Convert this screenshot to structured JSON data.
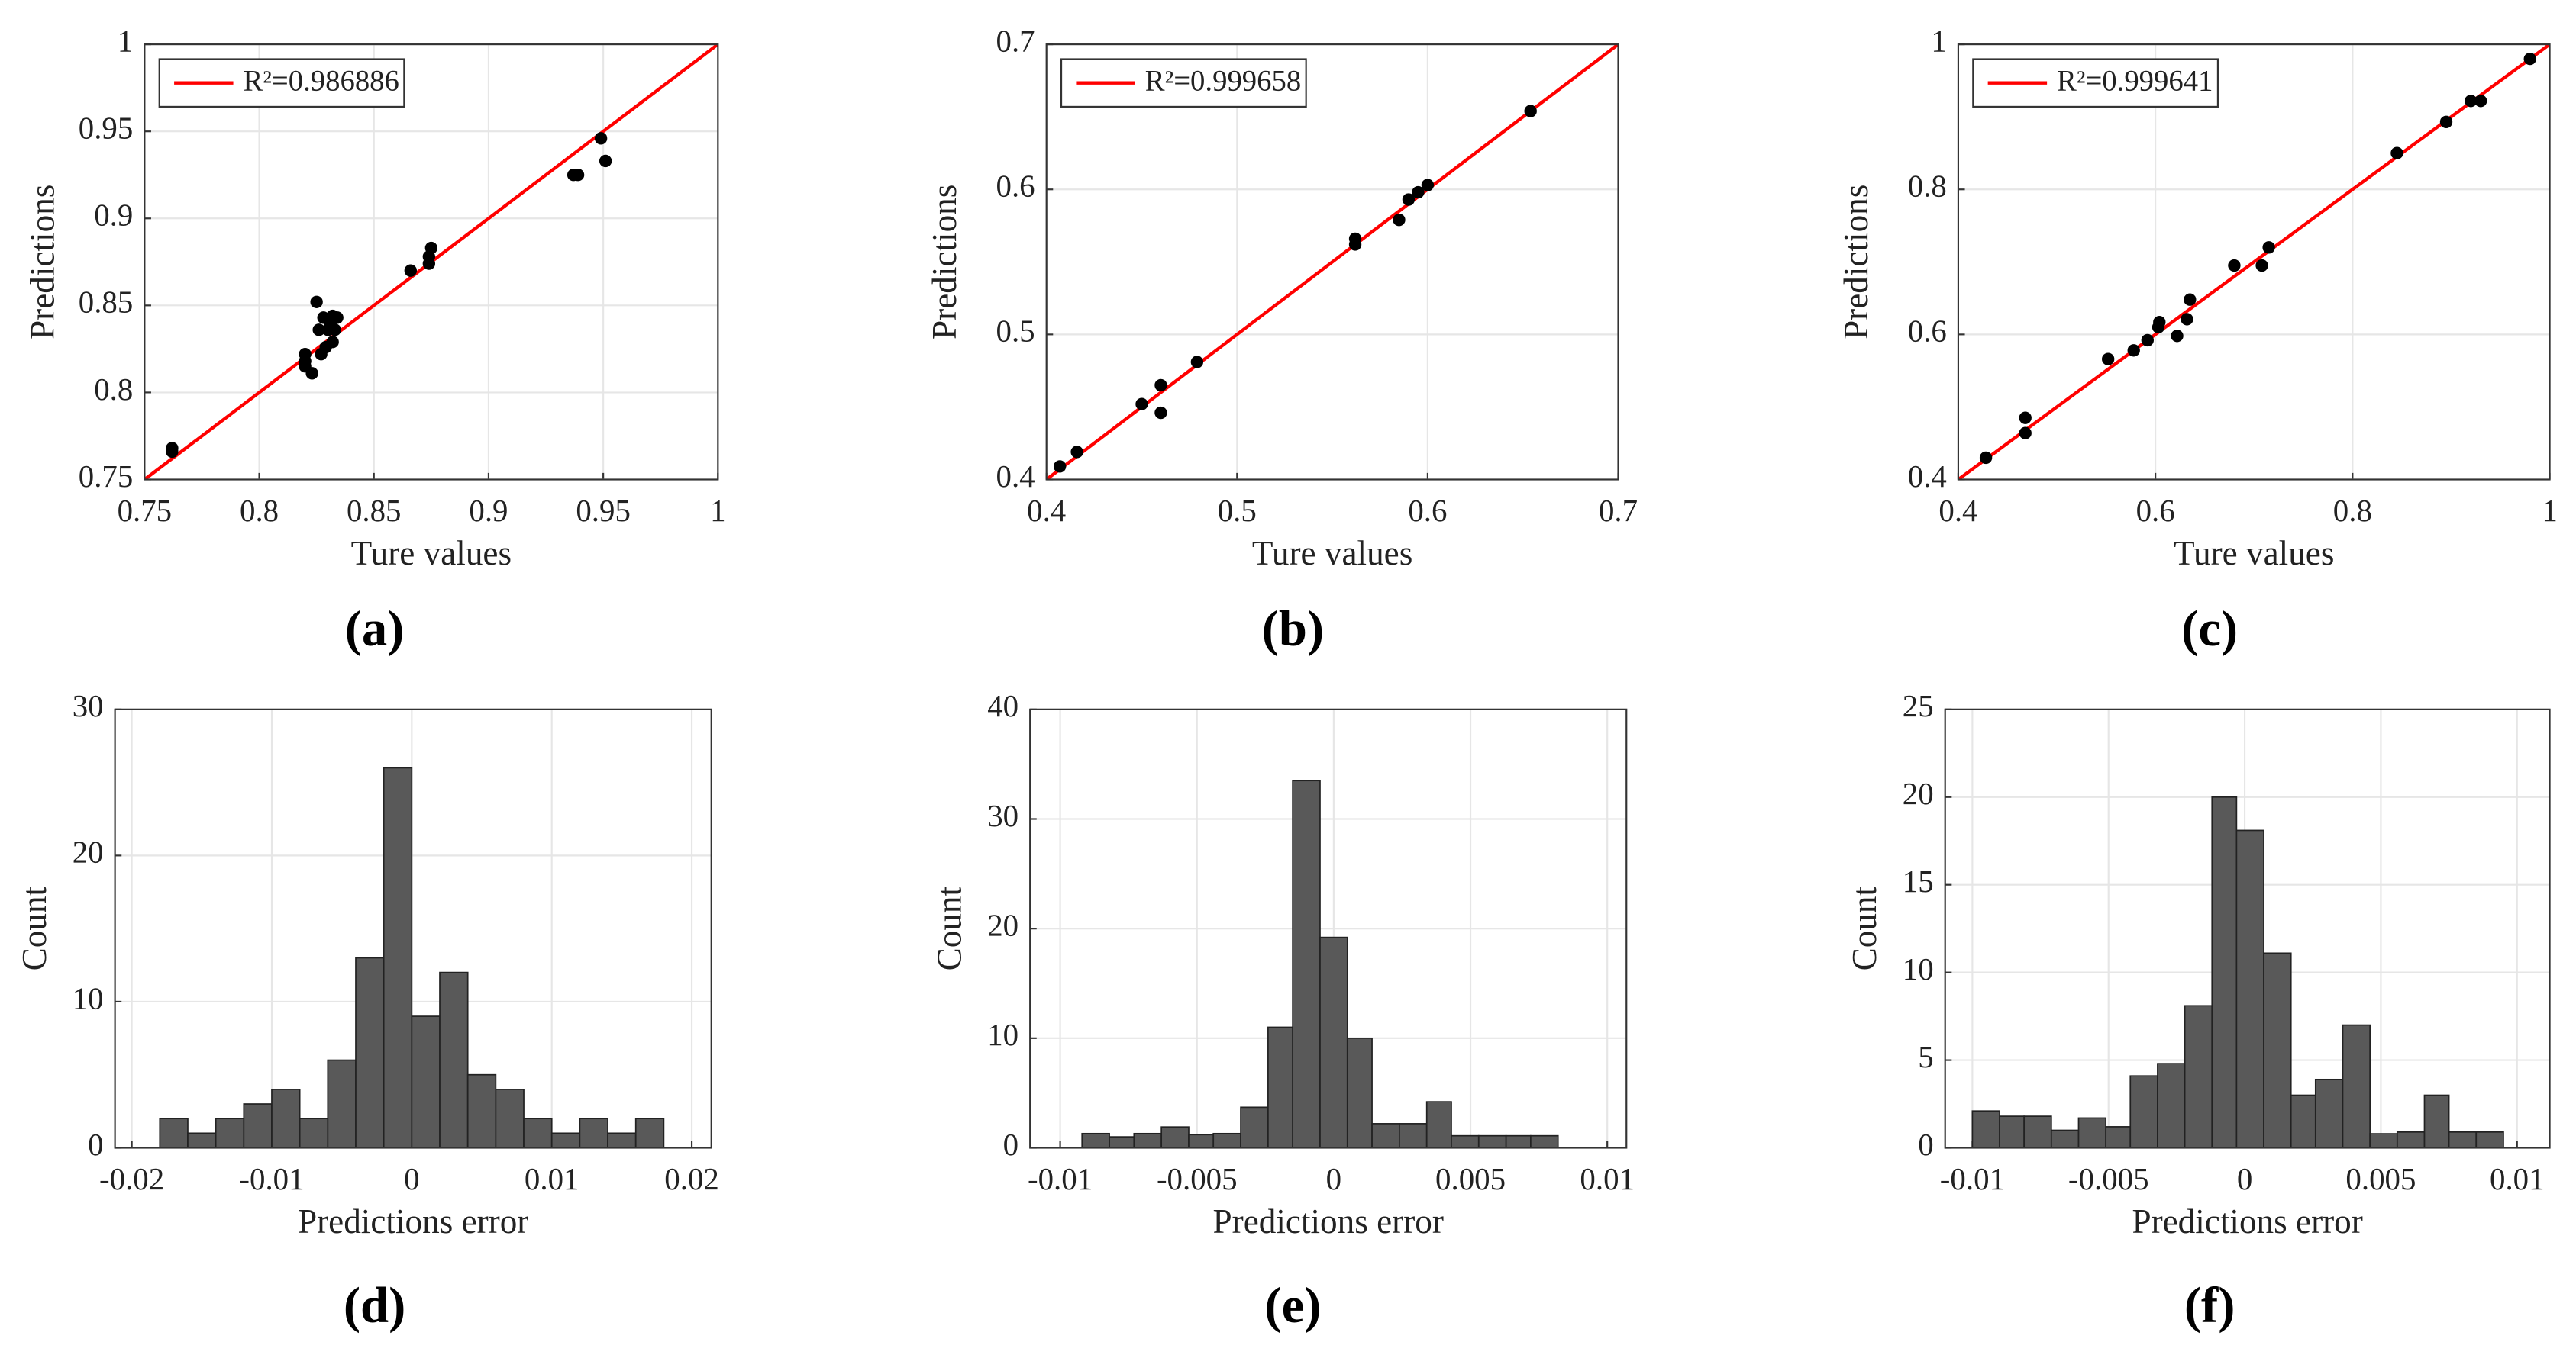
{
  "chart_data": [
    {
      "type": "scatter",
      "label": "(a)",
      "xlabel": "Ture values",
      "ylabel": "Predictions",
      "xlim": [
        0.75,
        1
      ],
      "ylim": [
        0.75,
        1
      ],
      "xticks": [
        0.75,
        0.8,
        0.85,
        0.9,
        0.95,
        1
      ],
      "yticks": [
        0.75,
        0.8,
        0.85,
        0.9,
        0.95,
        1
      ],
      "grid": true,
      "legend": "upper left",
      "fit_line": {
        "name": "R²=0.986886",
        "color": "#ff0000",
        "x": [
          0.75,
          1
        ],
        "y": [
          0.75,
          1
        ]
      },
      "points": {
        "color": "#000000",
        "x": [
          0.762,
          0.762,
          0.82,
          0.82,
          0.82,
          0.823,
          0.825,
          0.826,
          0.827,
          0.828,
          0.829,
          0.83,
          0.831,
          0.832,
          0.832,
          0.833,
          0.834,
          0.866,
          0.874,
          0.874,
          0.875,
          0.937,
          0.939,
          0.949,
          0.951
        ],
        "y": [
          0.768,
          0.766,
          0.822,
          0.818,
          0.815,
          0.811,
          0.852,
          0.836,
          0.822,
          0.843,
          0.826,
          0.836,
          0.84,
          0.844,
          0.829,
          0.836,
          0.843,
          0.87,
          0.874,
          0.878,
          0.883,
          0.925,
          0.925,
          0.946,
          0.933
        ]
      }
    },
    {
      "type": "scatter",
      "label": "(b)",
      "xlabel": "Ture values",
      "ylabel": "Predictions",
      "xlim": [
        0.4,
        0.7
      ],
      "ylim": [
        0.4,
        0.7
      ],
      "xticks": [
        0.4,
        0.5,
        0.6,
        0.7
      ],
      "yticks": [
        0.4,
        0.5,
        0.6,
        0.7
      ],
      "grid": true,
      "legend": "upper left",
      "fit_line": {
        "name": "R²=0.999658",
        "color": "#ff0000",
        "x": [
          0.4,
          0.7
        ],
        "y": [
          0.4,
          0.7
        ]
      },
      "points": {
        "color": "#000000",
        "x": [
          0.407,
          0.416,
          0.45,
          0.46,
          0.46,
          0.479,
          0.562,
          0.562,
          0.585,
          0.59,
          0.595,
          0.6,
          0.654
        ],
        "y": [
          0.409,
          0.419,
          0.452,
          0.465,
          0.446,
          0.481,
          0.566,
          0.562,
          0.579,
          0.593,
          0.598,
          0.603,
          0.654
        ]
      }
    },
    {
      "type": "scatter",
      "label": "(c)",
      "xlabel": "Ture values",
      "ylabel": "Predictions",
      "xlim": [
        0.4,
        1
      ],
      "ylim": [
        0.4,
        1
      ],
      "xticks": [
        0.4,
        0.6,
        0.8,
        1
      ],
      "yticks": [
        0.4,
        0.6,
        0.8,
        1
      ],
      "grid": true,
      "legend": "upper left",
      "fit_line": {
        "name": "R²=0.999641",
        "color": "#ff0000",
        "x": [
          0.4,
          1
        ],
        "y": [
          0.4,
          1
        ]
      },
      "points": {
        "color": "#000000",
        "x": [
          0.428,
          0.468,
          0.468,
          0.552,
          0.578,
          0.592,
          0.603,
          0.604,
          0.622,
          0.632,
          0.635,
          0.68,
          0.708,
          0.715,
          0.845,
          0.895,
          0.92,
          0.93,
          0.98
        ],
        "y": [
          0.43,
          0.485,
          0.464,
          0.566,
          0.578,
          0.592,
          0.61,
          0.617,
          0.598,
          0.621,
          0.648,
          0.695,
          0.695,
          0.72,
          0.85,
          0.893,
          0.922,
          0.922,
          0.98
        ]
      }
    },
    {
      "type": "histogram",
      "label": "(d)",
      "xlabel": "Predictions error",
      "ylabel": "Count",
      "xlim": [
        -0.0212,
        0.0214
      ],
      "ylim": [
        0,
        30
      ],
      "xticks": [
        -0.02,
        -0.01,
        0,
        0.01,
        0.02
      ],
      "yticks": [
        0,
        10,
        20,
        30
      ],
      "grid": true,
      "color": "#595959",
      "bins": [
        -0.018,
        -0.016,
        -0.014,
        -0.012,
        -0.01,
        -0.008,
        -0.006,
        -0.004,
        -0.002,
        0,
        0.002,
        0.004,
        0.006,
        0.008,
        0.01,
        0.012,
        0.014,
        0.016,
        0.018
      ],
      "counts": [
        2,
        1,
        2,
        3,
        4,
        2,
        6,
        13,
        26,
        9,
        12,
        5,
        4,
        2,
        1,
        2,
        1,
        2
      ]
    },
    {
      "type": "histogram",
      "label": "(e)",
      "xlabel": "Predictions error",
      "ylabel": "Count",
      "xlim": [
        -0.0111,
        0.0107
      ],
      "ylim": [
        0,
        40
      ],
      "xticks": [
        -0.01,
        -0.005,
        0,
        0.005,
        0.01
      ],
      "yticks": [
        0,
        10,
        20,
        30,
        40
      ],
      "grid": true,
      "color": "#595959",
      "bins": [
        -0.0092,
        -0.0082,
        -0.0073,
        -0.0063,
        -0.0053,
        -0.0044,
        -0.0034,
        -0.0024,
        -0.0015,
        -0.0005,
        0.0005,
        0.0014,
        0.0024,
        0.0034,
        0.0043,
        0.0053,
        0.0063,
        0.0072,
        0.0082
      ],
      "counts": [
        1.3,
        1,
        1.3,
        1.9,
        1.2,
        1.3,
        3.7,
        11,
        33.5,
        19.2,
        10,
        2.2,
        2.2,
        4.2,
        1.1,
        1.1,
        1.1,
        1.1
      ]
    },
    {
      "type": "histogram",
      "label": "(f)",
      "xlabel": "Predictions error",
      "ylabel": "Count",
      "xlim": [
        -0.011,
        0.0112
      ],
      "ylim": [
        0,
        25
      ],
      "xticks": [
        -0.01,
        -0.005,
        0,
        0.005,
        0.01
      ],
      "yticks": [
        0,
        5,
        10,
        15,
        20,
        25
      ],
      "grid": true,
      "color": "#595959",
      "bins": [
        -0.01,
        -0.009,
        -0.0081,
        -0.0071,
        -0.0061,
        -0.0051,
        -0.0042,
        -0.0032,
        -0.0022,
        -0.0012,
        -0.0003,
        0.0007,
        0.0017,
        0.0026,
        0.0036,
        0.0046,
        0.0056,
        0.0066,
        0.0075,
        0.0085,
        0.0095
      ],
      "counts": [
        2.1,
        1.8,
        1.8,
        1,
        1.7,
        1.2,
        4.1,
        4.8,
        8.1,
        20,
        18.1,
        11.1,
        3,
        3.9,
        7,
        0.8,
        0.9,
        3,
        0.9,
        0.9
      ]
    }
  ]
}
